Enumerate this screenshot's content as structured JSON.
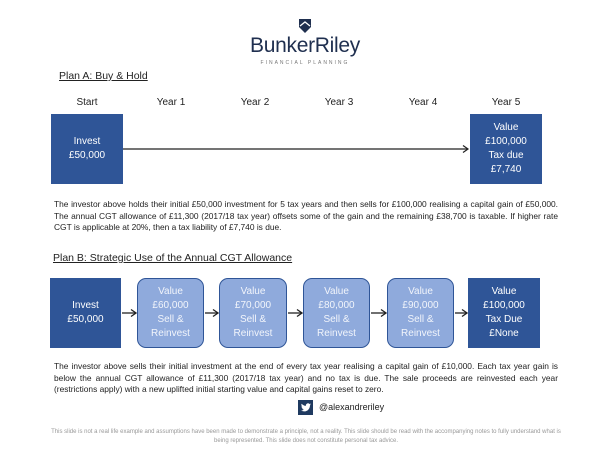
{
  "logo": {
    "name": "BunkerRiley",
    "tagline": "FINANCIAL PLANNING"
  },
  "plan_a": {
    "heading": "Plan A: Buy & Hold",
    "years": [
      "Start",
      "Year 1",
      "Year 2",
      "Year 3",
      "Year 4",
      "Year 5"
    ],
    "start_box": [
      "Invest",
      "£50,000"
    ],
    "end_box": [
      "Value",
      "£100,000",
      "Tax due",
      "£7,740"
    ],
    "paragraph": "The investor above holds their initial £50,000 investment for 5 tax years and then sells for £100,000 realising a capital gain of £50,000. The annual CGT allowance of £11,300 (2017/18 tax year) offsets some of the gain and the remaining £38,700 is taxable. If higher rate CGT is applicable at 20%, then a tax liability of £7,740 is due."
  },
  "plan_b": {
    "heading": "Plan B: Strategic Use of the Annual CGT Allowance",
    "boxes": [
      {
        "lines": [
          "Invest",
          "£50,000"
        ],
        "style": "dark"
      },
      {
        "lines": [
          "Value",
          "£60,000",
          "Sell &",
          "Reinvest"
        ],
        "style": "light"
      },
      {
        "lines": [
          "Value",
          "£70,000",
          "Sell &",
          "Reinvest"
        ],
        "style": "light"
      },
      {
        "lines": [
          "Value",
          "£80,000",
          "Sell &",
          "Reinvest"
        ],
        "style": "light"
      },
      {
        "lines": [
          "Value",
          "£90,000",
          "Sell &",
          "Reinvest"
        ],
        "style": "light"
      },
      {
        "lines": [
          "Value",
          "£100,000",
          "Tax Due",
          "£None"
        ],
        "style": "dark"
      }
    ],
    "paragraph": "The investor above sells their initial investment at the end of every tax year realising a capital gain of £10,000. Each tax year gain is below the annual CGT allowance of £11,300 (2017/18 tax year) and no tax is due. The sale proceeds are reinvested each year (restrictions apply) with a new uplifted initial starting value and capital gains reset to zero."
  },
  "twitter": {
    "handle": "@alexandreriley",
    "icon": "twitter-icon"
  },
  "disclaimer": "This slide is not a real life example and assumptions have been made to demonstrate a principle, not a reality. This slide should be read with the accompanying notes to fully understand what is being represented. This slide does not constitute personal tax advice.",
  "colors": {
    "dark_box": "#2F5597",
    "light_box": "#8FAADC",
    "brand": "#1f2f4f"
  }
}
